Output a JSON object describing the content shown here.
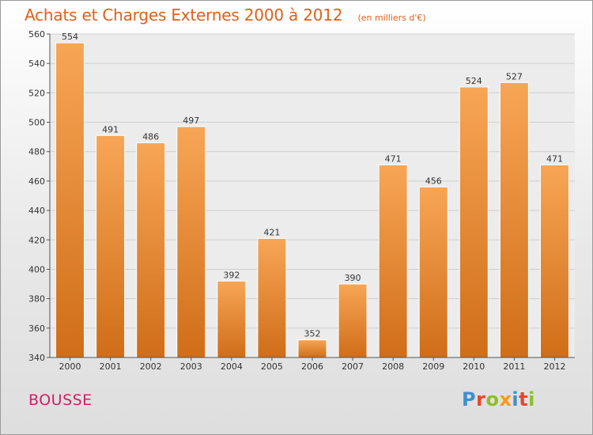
{
  "title": "Achats et Charges Externes 2000 à 2012",
  "subtitle": "(en milliers d'€)",
  "place": "BOUSSE",
  "logo": {
    "text": "Proxiti",
    "letters": [
      {
        "ch": "P",
        "color": "#3f8fd0"
      },
      {
        "ch": "r",
        "color": "#e8462a"
      },
      {
        "ch": "o",
        "color": "#8cbf2a"
      },
      {
        "ch": "x",
        "color": "#f39b1c"
      },
      {
        "ch": "i",
        "color": "#3f8fd0"
      },
      {
        "ch": "t",
        "color": "#e8462a"
      },
      {
        "ch": "i",
        "color": "#8cbf2a"
      }
    ]
  },
  "colors": {
    "title": "#e0601a",
    "place": "#cc2266",
    "bar_light": "#f7a656",
    "bar_dark": "#d06d18"
  },
  "chart_data": {
    "type": "bar",
    "categories": [
      "2000",
      "2001",
      "2002",
      "2003",
      "2004",
      "2005",
      "2006",
      "2007",
      "2008",
      "2009",
      "2010",
      "2011",
      "2012"
    ],
    "values": [
      554,
      491,
      486,
      497,
      392,
      421,
      352,
      390,
      471,
      456,
      524,
      527,
      471
    ],
    "ylim": [
      340,
      560
    ],
    "yticks": [
      340,
      360,
      380,
      400,
      420,
      440,
      460,
      480,
      500,
      520,
      540,
      560
    ],
    "grid": true,
    "data_labels": true
  }
}
